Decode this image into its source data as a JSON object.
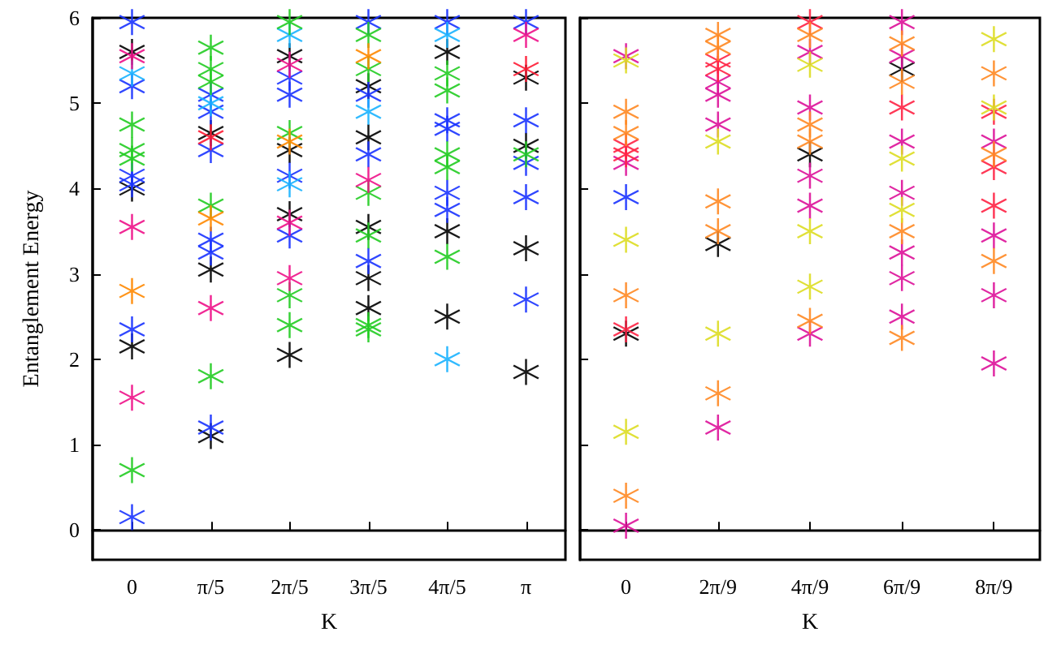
{
  "chart_data": [
    {
      "type": "scatter",
      "xlabel": "K",
      "ylabel": "Entanglement Energy",
      "categories": [
        "0",
        "π/5",
        "2π/5",
        "3π/5",
        "4π/5",
        "π"
      ],
      "ylim": [
        -0.35,
        6
      ],
      "yticks": [
        0,
        1,
        2,
        3,
        4,
        5,
        6
      ],
      "marker": "star",
      "series": [
        {
          "color": "#000000",
          "x": [
            "0",
            "0",
            "0",
            "π/5",
            "π/5",
            "π/5",
            "2π/5",
            "2π/5",
            "2π/5",
            "2π/5",
            "3π/5",
            "3π/5",
            "3π/5",
            "3π/5",
            "3π/5",
            "4π/5",
            "4π/5",
            "4π/5",
            "π",
            "π",
            "π",
            "π"
          ],
          "values": [
            5.6,
            4.0,
            2.15,
            4.65,
            3.05,
            1.1,
            5.55,
            4.45,
            3.7,
            2.05,
            5.2,
            4.6,
            3.55,
            2.95,
            2.6,
            5.6,
            3.5,
            2.5,
            5.3,
            4.5,
            3.3,
            1.85
          ]
        },
        {
          "color": "#1a33ff",
          "x": [
            "0",
            "0",
            "0",
            "0",
            "0",
            "0",
            "π/5",
            "π/5",
            "π/5",
            "π/5",
            "π/5",
            "π/5",
            "2π/5",
            "2π/5",
            "2π/5",
            "2π/5",
            "3π/5",
            "3π/5",
            "3π/5",
            "3π/5",
            "4π/5",
            "4π/5",
            "4π/5",
            "4π/5",
            "4π/5",
            "π",
            "π",
            "π",
            "π",
            "π"
          ],
          "values": [
            5.95,
            5.2,
            4.15,
            4.05,
            2.35,
            0.15,
            5.1,
            4.9,
            4.45,
            3.4,
            3.25,
            1.2,
            5.3,
            5.1,
            4.15,
            3.45,
            5.95,
            5.1,
            4.4,
            3.15,
            5.95,
            4.8,
            4.7,
            3.95,
            3.75,
            5.95,
            4.8,
            4.3,
            3.9,
            2.7
          ]
        },
        {
          "color": "#1ab2ff",
          "x": [
            "0",
            "π/5",
            "2π/5",
            "2π/5",
            "3π/5",
            "4π/5",
            "4π/5"
          ],
          "values": [
            5.35,
            5.0,
            5.8,
            4.05,
            4.9,
            5.8,
            2.0
          ]
        },
        {
          "color": "#22cc22",
          "x": [
            "0",
            "0",
            "0",
            "0",
            "π/5",
            "π/5",
            "π/5",
            "π/5",
            "π/5",
            "2π/5",
            "2π/5",
            "2π/5",
            "2π/5",
            "3π/5",
            "3π/5",
            "3π/5",
            "3π/5",
            "3π/5",
            "3π/5",
            "4π/5",
            "4π/5",
            "4π/5",
            "4π/5",
            "4π/5",
            "π"
          ],
          "values": [
            4.75,
            4.45,
            4.35,
            0.7,
            5.65,
            5.4,
            5.25,
            3.8,
            1.8,
            5.95,
            4.65,
            2.75,
            2.4,
            5.8,
            5.4,
            3.95,
            3.45,
            2.4,
            2.35,
            5.35,
            5.15,
            4.4,
            4.25,
            3.2,
            4.4
          ]
        },
        {
          "color": "#ee1188",
          "x": [
            "0",
            "0",
            "0",
            "π/5",
            "2π/5",
            "2π/5",
            "2π/5",
            "3π/5",
            "π"
          ],
          "values": [
            5.55,
            3.55,
            1.55,
            2.6,
            5.45,
            3.6,
            2.95,
            4.1,
            5.8
          ]
        },
        {
          "color": "#ff8800",
          "x": [
            "0",
            "π/5",
            "2π/5",
            "3π/5"
          ],
          "values": [
            2.8,
            3.65,
            4.55,
            5.55
          ]
        },
        {
          "color": "#ff1a33",
          "x": [
            "π/5",
            "π"
          ],
          "values": [
            4.6,
            5.4
          ]
        }
      ]
    },
    {
      "type": "scatter",
      "xlabel": "K",
      "categories": [
        "0",
        "2π/9",
        "4π/9",
        "6π/9",
        "8π/9"
      ],
      "ylim": [
        -0.35,
        6
      ],
      "yticks": [
        0,
        1,
        2,
        3,
        4,
        5,
        6
      ],
      "tick_labels": "x",
      "marker": "star",
      "series": [
        {
          "color": "#000000",
          "x": [
            "0",
            "2π/9",
            "4π/9",
            "6π/9"
          ],
          "values": [
            2.3,
            3.35,
            4.4,
            5.4
          ]
        },
        {
          "color": "#1a33ff",
          "x": [
            "0"
          ],
          "values": [
            3.9
          ]
        },
        {
          "color": "#dd1199",
          "x": [
            "0",
            "0",
            "0",
            "2π/9",
            "2π/9",
            "2π/9",
            "2π/9",
            "4π/9",
            "4π/9",
            "4π/9",
            "4π/9",
            "4π/9",
            "6π/9",
            "6π/9",
            "6π/9",
            "6π/9",
            "6π/9",
            "6π/9",
            "6π/9",
            "8π/9",
            "8π/9",
            "8π/9",
            "8π/9"
          ],
          "values": [
            5.55,
            4.3,
            0.05,
            5.25,
            5.1,
            4.75,
            1.2,
            5.6,
            4.95,
            4.15,
            3.8,
            2.3,
            5.95,
            5.55,
            4.55,
            3.95,
            3.25,
            2.95,
            2.5,
            4.55,
            3.45,
            2.75,
            1.95
          ]
        },
        {
          "color": "#ff2244",
          "x": [
            "0",
            "0",
            "0",
            "2π/9",
            "2π/9",
            "4π/9",
            "6π/9",
            "8π/9",
            "8π/9",
            "8π/9"
          ],
          "values": [
            4.5,
            4.4,
            2.35,
            5.5,
            5.4,
            5.95,
            4.95,
            4.9,
            4.25,
            3.8
          ]
        },
        {
          "color": "#ff8822",
          "x": [
            "0",
            "0",
            "0",
            "0",
            "2π/9",
            "2π/9",
            "2π/9",
            "2π/9",
            "2π/9",
            "4π/9",
            "4π/9",
            "4π/9",
            "4π/9",
            "6π/9",
            "6π/9",
            "6π/9",
            "6π/9",
            "8π/9",
            "8π/9",
            "8π/9"
          ],
          "values": [
            4.9,
            4.65,
            2.75,
            0.4,
            5.8,
            5.65,
            3.85,
            3.5,
            1.6,
            5.8,
            4.75,
            4.55,
            2.45,
            5.7,
            5.25,
            3.5,
            2.25,
            5.35,
            4.4,
            3.15
          ]
        },
        {
          "color": "#dddd22",
          "x": [
            "0",
            "0",
            "0",
            "2π/9",
            "2π/9",
            "4π/9",
            "4π/9",
            "4π/9",
            "6π/9",
            "6π/9",
            "8π/9",
            "8π/9"
          ],
          "values": [
            5.5,
            3.4,
            1.15,
            4.55,
            2.3,
            5.45,
            3.5,
            2.85,
            4.35,
            3.75,
            5.75,
            4.95
          ]
        }
      ]
    }
  ]
}
